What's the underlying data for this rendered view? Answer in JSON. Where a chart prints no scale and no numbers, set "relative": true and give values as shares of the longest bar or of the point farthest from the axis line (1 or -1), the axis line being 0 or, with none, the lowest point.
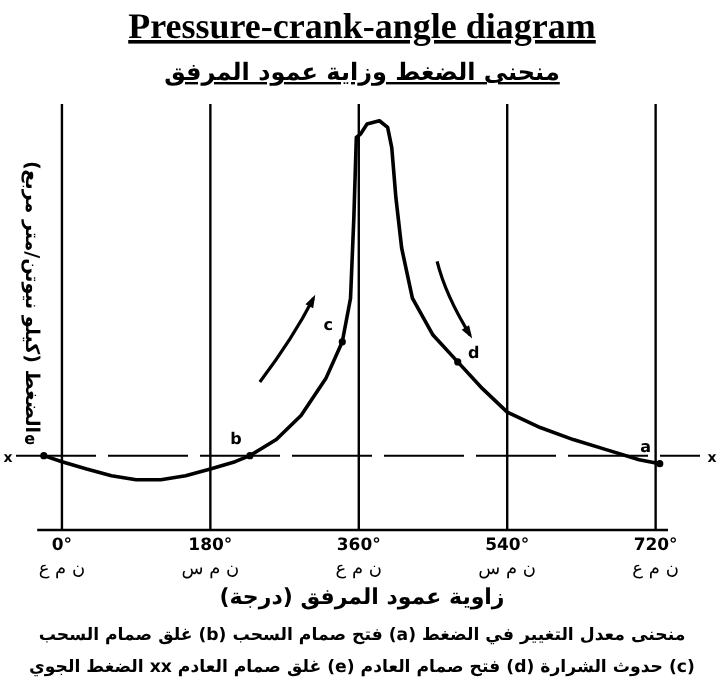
{
  "chart_data": {
    "type": "line",
    "title": "Pressure-crank-angle diagram",
    "subtitle": "منحنى الضغط وزاية عمود المرفق",
    "xlabel": "زاوية عمود المرفق (درجة)",
    "ylabel": "الضغط (كيلو نيوتن/متر مربع)",
    "relative": true,
    "color": "#000000",
    "x": [
      -22,
      0,
      30,
      60,
      90,
      120,
      150,
      180,
      210,
      228,
      260,
      290,
      320,
      340,
      350,
      354,
      357,
      362,
      370,
      385,
      395,
      400,
      405,
      412,
      425,
      450,
      480,
      510,
      540,
      580,
      620,
      660,
      700,
      725
    ],
    "values": [
      0,
      -0.018,
      -0.04,
      -0.06,
      -0.072,
      -0.072,
      -0.06,
      -0.04,
      -0.018,
      0,
      0.048,
      0.12,
      0.23,
      0.34,
      0.47,
      0.71,
      0.95,
      0.96,
      0.99,
      1,
      0.98,
      0.92,
      0.77,
      0.62,
      0.47,
      0.36,
      0.28,
      0.2,
      0.13,
      0.084,
      0.048,
      0.018,
      -0.012,
      -0.024
    ],
    "xlim": [
      -30,
      735
    ],
    "xticks": [
      {
        "value": 0,
        "label": "0°"
      },
      {
        "value": 180,
        "label": "180°"
      },
      {
        "value": 360,
        "label": "360°"
      },
      {
        "value": 540,
        "label": "540°"
      },
      {
        "value": 720,
        "label": "720°"
      }
    ],
    "grid": "x",
    "ref_lines": [
      {
        "axis": "y",
        "value": 0,
        "label": "x",
        "line_style": "dashed"
      }
    ],
    "annotations": [
      {
        "text": "e",
        "x": -22,
        "y": 0
      },
      {
        "text": "b",
        "x": 228,
        "y": 0
      },
      {
        "text": "c",
        "x": 340,
        "y": 0.34
      },
      {
        "text": "d",
        "x": 480,
        "y": 0.28
      },
      {
        "text": "a",
        "x": 725,
        "y": -0.024
      },
      "ن م ع",
      "ن م س",
      "ن م ع",
      "ن م س",
      "ن م ع",
      "منحنى معدل التغيير في الضغط (a) فتح صمام السحب (b) غلق صمام السحب",
      "(c) حدوث الشرارة (d) فتح صمام العادم (e) غلق صمام العادم xx الضغط الجوي"
    ]
  }
}
